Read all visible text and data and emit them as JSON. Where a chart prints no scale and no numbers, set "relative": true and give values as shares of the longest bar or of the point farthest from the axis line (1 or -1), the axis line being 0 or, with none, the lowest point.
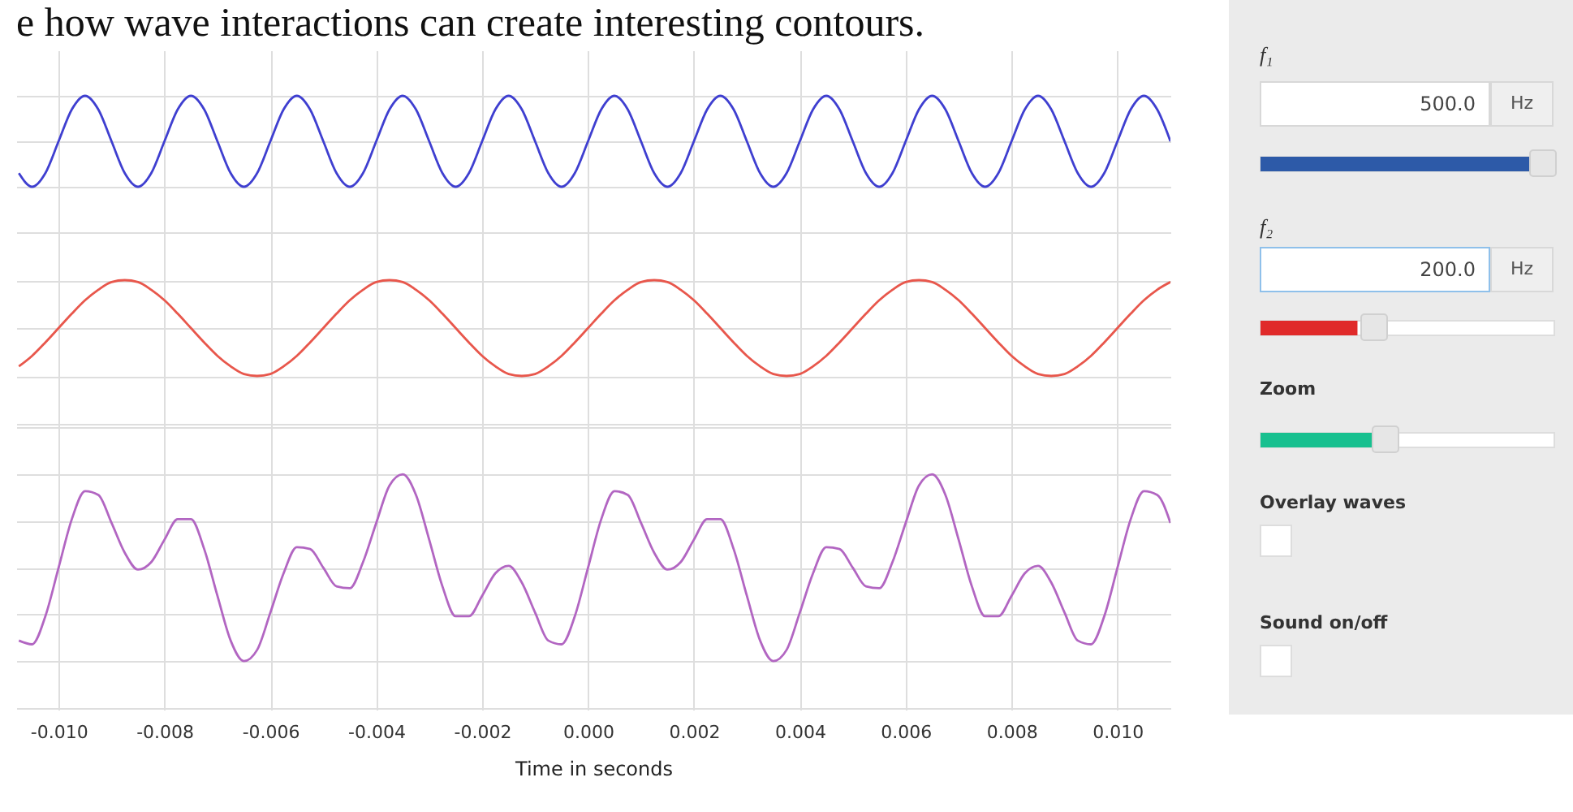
{
  "chart_data": [
    {
      "type": "line",
      "title": "e how wave interactions can create interesting contours.",
      "relative": true,
      "xlim": [
        -0.0108,
        0.011
      ],
      "xticks": [
        {
          "value": -0.01,
          "label": null
        },
        {
          "value": -0.008,
          "label": null
        },
        {
          "value": -0.006,
          "label": null
        },
        {
          "value": -0.004,
          "label": null
        },
        {
          "value": -0.002,
          "label": null
        },
        {
          "value": 0,
          "label": null
        },
        {
          "value": 0.002,
          "label": null
        },
        {
          "value": 0.004,
          "label": null
        },
        {
          "value": 0.006,
          "label": null
        },
        {
          "value": 0.008,
          "label": null
        },
        {
          "value": 0.01,
          "label": null
        }
      ],
      "grid": true,
      "tick_labels": false,
      "x": [
        -0.01075,
        -0.0105,
        -0.01025,
        -0.01,
        -0.00975,
        -0.0095,
        -0.00925,
        -0.009,
        -0.00875,
        -0.0085,
        -0.00825,
        -0.008,
        -0.00775,
        -0.0075,
        -0.00725,
        -0.007,
        -0.00675,
        -0.0065,
        -0.00625,
        -0.006,
        -0.00575,
        -0.0055,
        -0.00525,
        -0.005,
        -0.00475,
        -0.0045,
        -0.00425,
        -0.004,
        -0.00375,
        -0.0035,
        -0.00325,
        -0.003,
        -0.00275,
        -0.0025,
        -0.00225,
        -0.002,
        -0.00175,
        -0.0015,
        -0.00125,
        -0.001,
        -0.00075,
        -0.0005,
        -0.00025,
        0,
        0.00025,
        0.0005,
        0.00075,
        0.001,
        0.00125,
        0.0015,
        0.00175,
        0.002,
        0.00225,
        0.0025,
        0.00275,
        0.003,
        0.00325,
        0.0035,
        0.00375,
        0.004,
        0.00425,
        0.0045,
        0.00475,
        0.005,
        0.00525,
        0.0055,
        0.00575,
        0.006,
        0.00625,
        0.0065,
        0.00675,
        0.007,
        0.00725,
        0.0075,
        0.00775,
        0.008,
        0.00825,
        0.0085,
        0.00875,
        0.009,
        0.00925,
        0.0095,
        0.00975,
        0.01,
        0.01025,
        0.0105,
        0.01075,
        0.011
      ],
      "series": [
        {
          "color": "#3f3fd0",
          "values": [
            0.15,
            0,
            0.15,
            0.5,
            0.85,
            1,
            0.85,
            0.5,
            0.15,
            0,
            0.15,
            0.5,
            0.85,
            1,
            0.85,
            0.5,
            0.15,
            0,
            0.15,
            0.5,
            0.85,
            1,
            0.85,
            0.5,
            0.15,
            0,
            0.15,
            0.5,
            0.85,
            1,
            0.85,
            0.5,
            0.15,
            0,
            0.15,
            0.5,
            0.85,
            1,
            0.85,
            0.5,
            0.15,
            0,
            0.15,
            0.5,
            0.85,
            1,
            0.85,
            0.5,
            0.15,
            0,
            0.15,
            0.5,
            0.85,
            1,
            0.85,
            0.5,
            0.15,
            0,
            0.15,
            0.5,
            0.85,
            1,
            0.85,
            0.5,
            0.15,
            0,
            0.15,
            0.5,
            0.85,
            1,
            0.85,
            0.5,
            0.15,
            0,
            0.15,
            0.5,
            0.85,
            1,
            0.85,
            0.5,
            0.15,
            0,
            0.15,
            0.5,
            0.85,
            1,
            0.85,
            0.5
          ]
        }
      ]
    },
    {
      "type": "line",
      "relative": true,
      "xlim": [
        -0.0108,
        0.011
      ],
      "xticks": [
        {
          "value": -0.01,
          "label": null
        },
        {
          "value": -0.008,
          "label": null
        },
        {
          "value": -0.006,
          "label": null
        },
        {
          "value": -0.004,
          "label": null
        },
        {
          "value": -0.002,
          "label": null
        },
        {
          "value": 0,
          "label": null
        },
        {
          "value": 0.002,
          "label": null
        },
        {
          "value": 0.004,
          "label": null
        },
        {
          "value": 0.006,
          "label": null
        },
        {
          "value": 0.008,
          "label": null
        },
        {
          "value": 0.01,
          "label": null
        }
      ],
      "grid": true,
      "tick_labels": false,
      "x": [
        -0.01075,
        -0.0105,
        -0.01025,
        -0.01,
        -0.00975,
        -0.0095,
        -0.00925,
        -0.009,
        -0.00875,
        -0.0085,
        -0.00825,
        -0.008,
        -0.00775,
        -0.0075,
        -0.00725,
        -0.007,
        -0.00675,
        -0.0065,
        -0.00625,
        -0.006,
        -0.00575,
        -0.0055,
        -0.00525,
        -0.005,
        -0.00475,
        -0.0045,
        -0.00425,
        -0.004,
        -0.00375,
        -0.0035,
        -0.00325,
        -0.003,
        -0.00275,
        -0.0025,
        -0.00225,
        -0.002,
        -0.00175,
        -0.0015,
        -0.00125,
        -0.001,
        -0.00075,
        -0.0005,
        -0.00025,
        0,
        0.00025,
        0.0005,
        0.00075,
        0.001,
        0.00125,
        0.0015,
        0.00175,
        0.002,
        0.00225,
        0.0025,
        0.00275,
        0.003,
        0.00325,
        0.0035,
        0.00375,
        0.004,
        0.00425,
        0.0045,
        0.00475,
        0.005,
        0.00525,
        0.0055,
        0.00575,
        0.006,
        0.00625,
        0.0065,
        0.00675,
        0.007,
        0.00725,
        0.0075,
        0.00775,
        0.008,
        0.00825,
        0.0085,
        0.00875,
        0.009,
        0.00925,
        0.0095,
        0.00975,
        0.01,
        0.01025,
        0.0105,
        0.01075,
        0.011
      ],
      "series": [
        {
          "color": "#e8574c",
          "values": [
            0.1,
            0.21,
            0.35,
            0.5,
            0.65,
            0.79,
            0.9,
            0.98,
            1,
            0.98,
            0.9,
            0.79,
            0.65,
            0.5,
            0.35,
            0.21,
            0.1,
            0.02,
            0,
            0.02,
            0.1,
            0.21,
            0.35,
            0.5,
            0.65,
            0.79,
            0.9,
            0.98,
            1,
            0.98,
            0.9,
            0.79,
            0.65,
            0.5,
            0.35,
            0.21,
            0.1,
            0.02,
            0,
            0.02,
            0.1,
            0.21,
            0.35,
            0.5,
            0.65,
            0.79,
            0.9,
            0.98,
            1,
            0.98,
            0.9,
            0.79,
            0.65,
            0.5,
            0.35,
            0.21,
            0.1,
            0.02,
            0,
            0.02,
            0.1,
            0.21,
            0.35,
            0.5,
            0.65,
            0.79,
            0.9,
            0.98,
            1,
            0.98,
            0.9,
            0.79,
            0.65,
            0.5,
            0.35,
            0.21,
            0.1,
            0.02,
            0,
            0.02,
            0.1,
            0.21,
            0.35,
            0.5,
            0.65,
            0.79,
            0.9,
            0.98
          ]
        }
      ]
    },
    {
      "type": "line",
      "relative": true,
      "xlabel": "Time in seconds",
      "xlim": [
        -0.0108,
        0.011
      ],
      "xticks": [
        {
          "value": -0.01,
          "label": "-0.010"
        },
        {
          "value": -0.008,
          "label": "-0.008"
        },
        {
          "value": -0.006,
          "label": "-0.006"
        },
        {
          "value": -0.004,
          "label": "-0.004"
        },
        {
          "value": -0.002,
          "label": "-0.002"
        },
        {
          "value": 0,
          "label": "0.000"
        },
        {
          "value": 0.002,
          "label": "0.002"
        },
        {
          "value": 0.004,
          "label": "0.004"
        },
        {
          "value": 0.006,
          "label": "0.006"
        },
        {
          "value": 0.008,
          "label": "0.008"
        },
        {
          "value": 0.01,
          "label": "0.010"
        }
      ],
      "grid": true,
      "tick_labels": "x",
      "x": [
        -0.01075,
        -0.0105,
        -0.01025,
        -0.01,
        -0.00975,
        -0.0095,
        -0.00925,
        -0.009,
        -0.00875,
        -0.0085,
        -0.00825,
        -0.008,
        -0.00775,
        -0.0075,
        -0.00725,
        -0.007,
        -0.00675,
        -0.0065,
        -0.00625,
        -0.006,
        -0.00575,
        -0.0055,
        -0.00525,
        -0.005,
        -0.00475,
        -0.0045,
        -0.00425,
        -0.004,
        -0.00375,
        -0.0035,
        -0.00325,
        -0.003,
        -0.00275,
        -0.0025,
        -0.00225,
        -0.002,
        -0.00175,
        -0.0015,
        -0.00125,
        -0.001,
        -0.00075,
        -0.0005,
        -0.00025,
        0,
        0.00025,
        0.0005,
        0.00075,
        0.001,
        0.00125,
        0.0015,
        0.00175,
        0.002,
        0.00225,
        0.0025,
        0.00275,
        0.003,
        0.00325,
        0.0035,
        0.00375,
        0.004,
        0.00425,
        0.0045,
        0.00475,
        0.005,
        0.00525,
        0.0055,
        0.00575,
        0.006,
        0.00625,
        0.0065,
        0.00675,
        0.007,
        0.00725,
        0.0075,
        0.00775,
        0.008,
        0.00825,
        0.0085,
        0.00875,
        0.009,
        0.00925,
        0.0095,
        0.00975,
        0.01,
        0.01025,
        0.0105,
        0.01075,
        0.011
      ],
      "series": [
        {
          "color": "#b266c2",
          "values": [
            0.11,
            0.09,
            0.24,
            0.5,
            0.76,
            0.91,
            0.89,
            0.74,
            0.58,
            0.49,
            0.53,
            0.65,
            0.76,
            0.76,
            0.6,
            0.35,
            0.11,
            0,
            0.06,
            0.26,
            0.47,
            0.61,
            0.6,
            0.5,
            0.4,
            0.39,
            0.53,
            0.74,
            0.94,
            1,
            0.89,
            0.65,
            0.4,
            0.24,
            0.24,
            0.35,
            0.47,
            0.51,
            0.42,
            0.26,
            0.11,
            0.09,
            0.24,
            0.5,
            0.76,
            0.91,
            0.89,
            0.74,
            0.58,
            0.49,
            0.53,
            0.65,
            0.76,
            0.76,
            0.6,
            0.35,
            0.11,
            0,
            0.06,
            0.26,
            0.47,
            0.61,
            0.6,
            0.5,
            0.4,
            0.39,
            0.53,
            0.74,
            0.94,
            1,
            0.89,
            0.65,
            0.4,
            0.24,
            0.24,
            0.35,
            0.47,
            0.51,
            0.42,
            0.26,
            0.11,
            0.09,
            0.24,
            0.5,
            0.76,
            0.91,
            0.89,
            0.74
          ]
        }
      ]
    },
    {
      "type": "other",
      "annotations": [
        "f₁",
        "500.0",
        "Hz",
        "f₂",
        "200.0",
        "Hz",
        "Zoom",
        "Overlay waves",
        "Sound on/off"
      ]
    }
  ]
}
